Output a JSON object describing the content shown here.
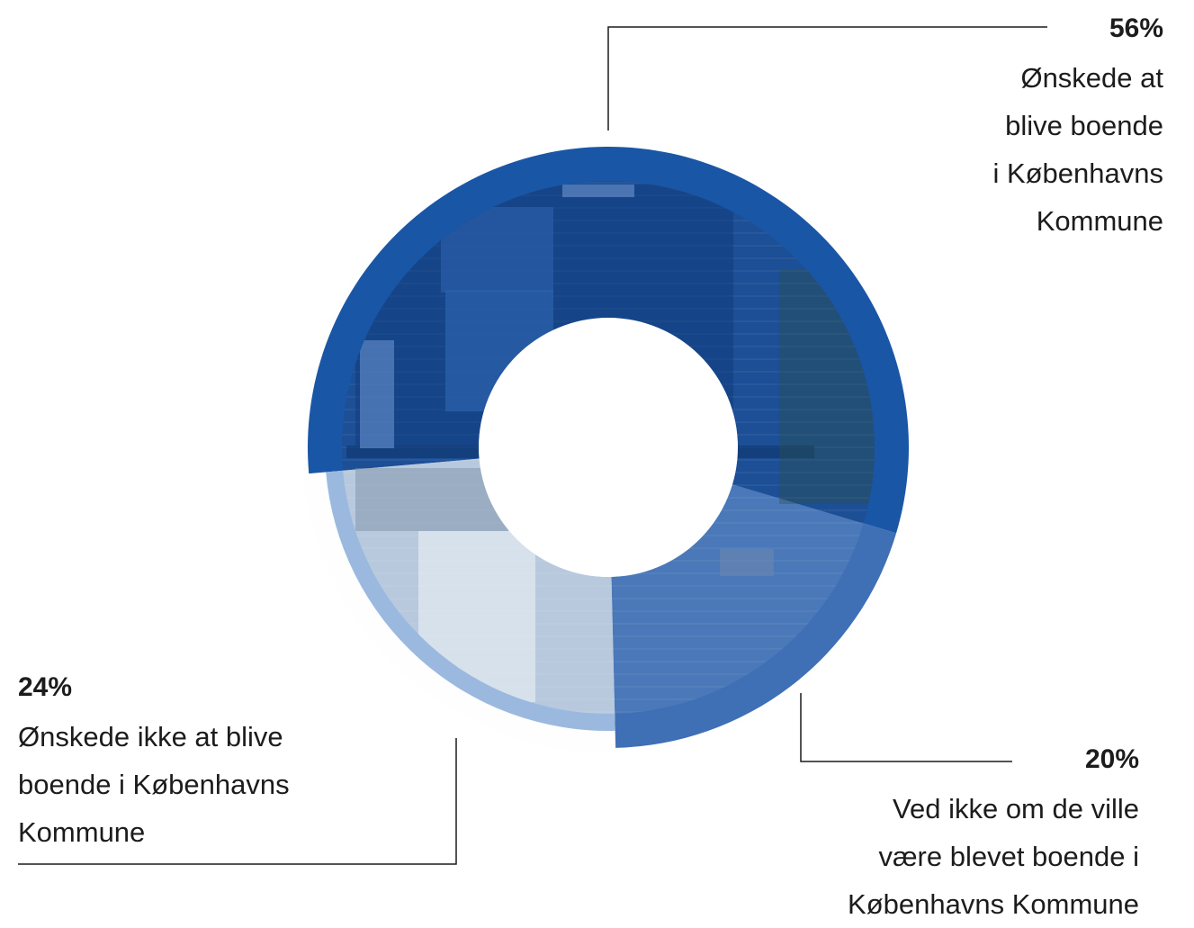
{
  "chart_data": {
    "type": "pie",
    "variant": "donut",
    "slices": [
      {
        "value": 56,
        "label": "56%",
        "description": "Ønskede at\nblive boende\ni Københavns\nKommune",
        "color": "#1a56a6"
      },
      {
        "value": 20,
        "label": "20%",
        "description": "Ved ikke om de ville\nvære blevet boende i\nKøbenhavns Kommune",
        "color": "#3f6fb5"
      },
      {
        "value": 24,
        "label": "24%",
        "description": "Ønskede ikke at blive\nboende i Københavns\nKommune",
        "color": "#9bb9df"
      }
    ],
    "colors": {
      "slice_56": "#1a56a6",
      "slice_20": "#3f6fb5",
      "slice_24": "#9bb9df",
      "photo_tint_56": "#1c4f96",
      "photo_tint_20": "#4a78b8",
      "photo_tint_24": "#b8c9de",
      "leader_line": "#1c1c1c"
    }
  }
}
